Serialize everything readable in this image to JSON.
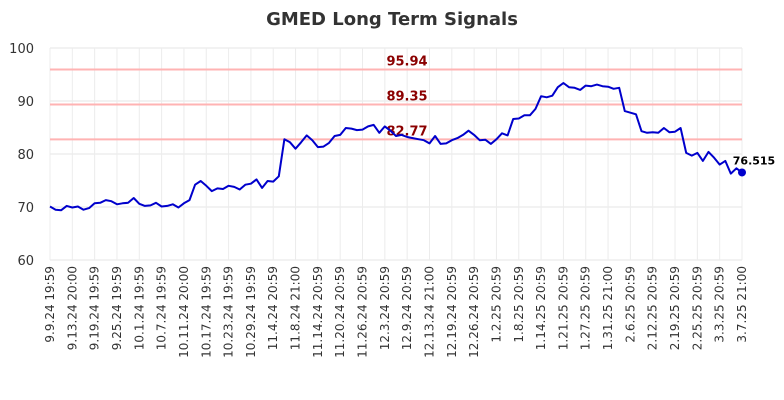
{
  "chart_data": {
    "type": "line",
    "title": "GMED Long Term Signals",
    "xlabel": "",
    "ylabel": "",
    "ylim": [
      60,
      100
    ],
    "yticks": [
      60,
      70,
      80,
      90,
      100
    ],
    "x_tick_labels": [
      "9.9.24 19:59",
      "9.13.24 20:00",
      "9.19.24 19:59",
      "9.25.24 19:59",
      "10.1.24 19:59",
      "10.7.24 19:59",
      "10.11.24 20:00",
      "10.17.24 19:59",
      "10.23.24 19:59",
      "10.29.24 19:59",
      "11.4.24 20:59",
      "11.8.24 21:00",
      "11.14.24 20:59",
      "11.20.24 20:59",
      "11.26.24 20:59",
      "12.3.24 20:59",
      "12.9.24 20:59",
      "12.13.24 21:00",
      "12.19.24 20:59",
      "12.26.24 20:59",
      "1.2.25 20:59",
      "1.8.25 20:59",
      "1.14.25 20:59",
      "1.21.25 20:59",
      "1.27.25 20:59",
      "1.31.25 21:00",
      "2.6.25 20:59",
      "2.12.25 20:59",
      "2.19.25 20:59",
      "2.25.25 20:59",
      "3.3.25 20:59",
      "3.7.25 21:00"
    ],
    "grid": true,
    "line_color": "#0000cc",
    "signal_line_color": "#ffb3b3",
    "signal_label_color": "#8b0000",
    "signals": [
      {
        "value": 95.94,
        "label": "95.94"
      },
      {
        "value": 89.35,
        "label": "89.35"
      },
      {
        "value": 82.77,
        "label": "82.77"
      }
    ],
    "last_value_label": "76.515",
    "series": [
      {
        "values": [
          70.1,
          69.5,
          69.4,
          70.2,
          69.9,
          70.1,
          69.5,
          69.8,
          70.7,
          70.8,
          71.3,
          71.1,
          70.5,
          70.7,
          70.8,
          71.7,
          70.6,
          70.2,
          70.3,
          70.8,
          70.1,
          70.2,
          70.5,
          69.9,
          70.7,
          71.3,
          74.2,
          74.9,
          74.0,
          73.0,
          73.5,
          73.4,
          74.0,
          73.8,
          73.3,
          74.2,
          74.4,
          75.2,
          73.6,
          74.9,
          74.8,
          75.8,
          82.8,
          82.2,
          81.0,
          82.2,
          83.5,
          82.6,
          81.3,
          81.4,
          82.1,
          83.4,
          83.6,
          84.9,
          84.8,
          84.5,
          84.6,
          85.2,
          85.5,
          84.0,
          85.2,
          84.4,
          83.4,
          83.6,
          83.2,
          83.0,
          82.8,
          82.6,
          82.0,
          83.4,
          81.9,
          82.0,
          82.6,
          83.0,
          83.6,
          84.4,
          83.6,
          82.6,
          82.7,
          81.9,
          82.8,
          83.9,
          83.5,
          86.6,
          86.7,
          87.3,
          87.3,
          88.5,
          90.9,
          90.7,
          91.0,
          92.6,
          93.4,
          92.6,
          92.5,
          92.1,
          92.9,
          92.8,
          93.1,
          92.8,
          92.7,
          92.3,
          92.5,
          88.1,
          87.8,
          87.5,
          84.3,
          84.0,
          84.1,
          84.0,
          84.9,
          84.1,
          84.2,
          84.9,
          80.2,
          79.7,
          80.2,
          78.7,
          80.4,
          79.3,
          78.0,
          78.7,
          76.3,
          77.3,
          76.515
        ]
      }
    ]
  }
}
